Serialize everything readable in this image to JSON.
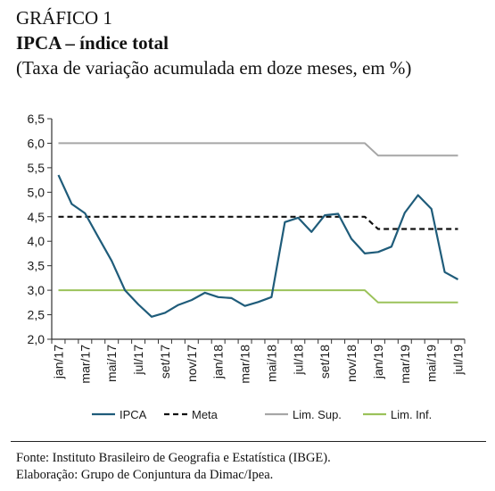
{
  "header": {
    "label": "GRÁFICO 1",
    "title": "IPCA – índice total",
    "subtitle": "(Taxa de variação acumulada em doze meses, em %)"
  },
  "footer": {
    "source": "Fonte: Instituto Brasileiro de Geografia e Estatística (IBGE).",
    "credit": "Elaboração: Grupo de Conjuntura da Dimac/Ipea."
  },
  "chart_data": {
    "type": "line",
    "title": "IPCA – índice total",
    "subtitle": "(Taxa de variação acumulada em doze meses, em %)",
    "xlabel": "",
    "ylabel": "",
    "ylim": [
      2.0,
      6.5
    ],
    "yticks": [
      "2,0",
      "2,5",
      "3,0",
      "3,5",
      "4,0",
      "4,5",
      "5,0",
      "5,5",
      "6,0",
      "6,5"
    ],
    "x": [
      "jan/17",
      "fev/17",
      "mar/17",
      "abr/17",
      "mai/17",
      "jun/17",
      "jul/17",
      "ago/17",
      "set/17",
      "out/17",
      "nov/17",
      "dez/17",
      "jan/18",
      "fev/18",
      "mar/18",
      "abr/18",
      "mai/18",
      "jun/18",
      "jul/18",
      "ago/18",
      "set/18",
      "out/18",
      "nov/18",
      "dez/18",
      "jan/19",
      "fev/19",
      "mar/19",
      "abr/19",
      "mai/19",
      "jun/19",
      "jul/19"
    ],
    "xtick_labels": [
      "jan/17",
      "mar/17",
      "mai/17",
      "jul/17",
      "set/17",
      "nov/17",
      "jan/18",
      "mar/18",
      "mai/18",
      "jul/18",
      "set/18",
      "nov/18",
      "jan/19",
      "mar/19",
      "mai/19",
      "jul/19"
    ],
    "grid": false,
    "legend_position": "bottom",
    "series": [
      {
        "name": "IPCA",
        "color": "#1f5c7a",
        "style": "solid",
        "values": [
          5.35,
          4.76,
          4.57,
          4.08,
          3.6,
          3.0,
          2.71,
          2.46,
          2.54,
          2.7,
          2.8,
          2.95,
          2.86,
          2.84,
          2.68,
          2.76,
          2.86,
          4.39,
          4.48,
          4.19,
          4.53,
          4.56,
          4.05,
          3.75,
          3.78,
          3.89,
          4.58,
          4.94,
          4.66,
          3.37,
          3.22
        ]
      },
      {
        "name": "Meta",
        "color": "#111111",
        "style": "dashed",
        "values": [
          4.5,
          4.5,
          4.5,
          4.5,
          4.5,
          4.5,
          4.5,
          4.5,
          4.5,
          4.5,
          4.5,
          4.5,
          4.5,
          4.5,
          4.5,
          4.5,
          4.5,
          4.5,
          4.5,
          4.5,
          4.5,
          4.5,
          4.5,
          4.5,
          4.25,
          4.25,
          4.25,
          4.25,
          4.25,
          4.25,
          4.25
        ]
      },
      {
        "name": "Lim. Sup.",
        "color": "#a6a6a6",
        "style": "solid",
        "values": [
          6.0,
          6.0,
          6.0,
          6.0,
          6.0,
          6.0,
          6.0,
          6.0,
          6.0,
          6.0,
          6.0,
          6.0,
          6.0,
          6.0,
          6.0,
          6.0,
          6.0,
          6.0,
          6.0,
          6.0,
          6.0,
          6.0,
          6.0,
          6.0,
          5.75,
          5.75,
          5.75,
          5.75,
          5.75,
          5.75,
          5.75
        ]
      },
      {
        "name": "Lim. Inf.",
        "color": "#9bc25a",
        "style": "solid",
        "values": [
          3.0,
          3.0,
          3.0,
          3.0,
          3.0,
          3.0,
          3.0,
          3.0,
          3.0,
          3.0,
          3.0,
          3.0,
          3.0,
          3.0,
          3.0,
          3.0,
          3.0,
          3.0,
          3.0,
          3.0,
          3.0,
          3.0,
          3.0,
          3.0,
          2.75,
          2.75,
          2.75,
          2.75,
          2.75,
          2.75,
          2.75
        ]
      }
    ]
  }
}
